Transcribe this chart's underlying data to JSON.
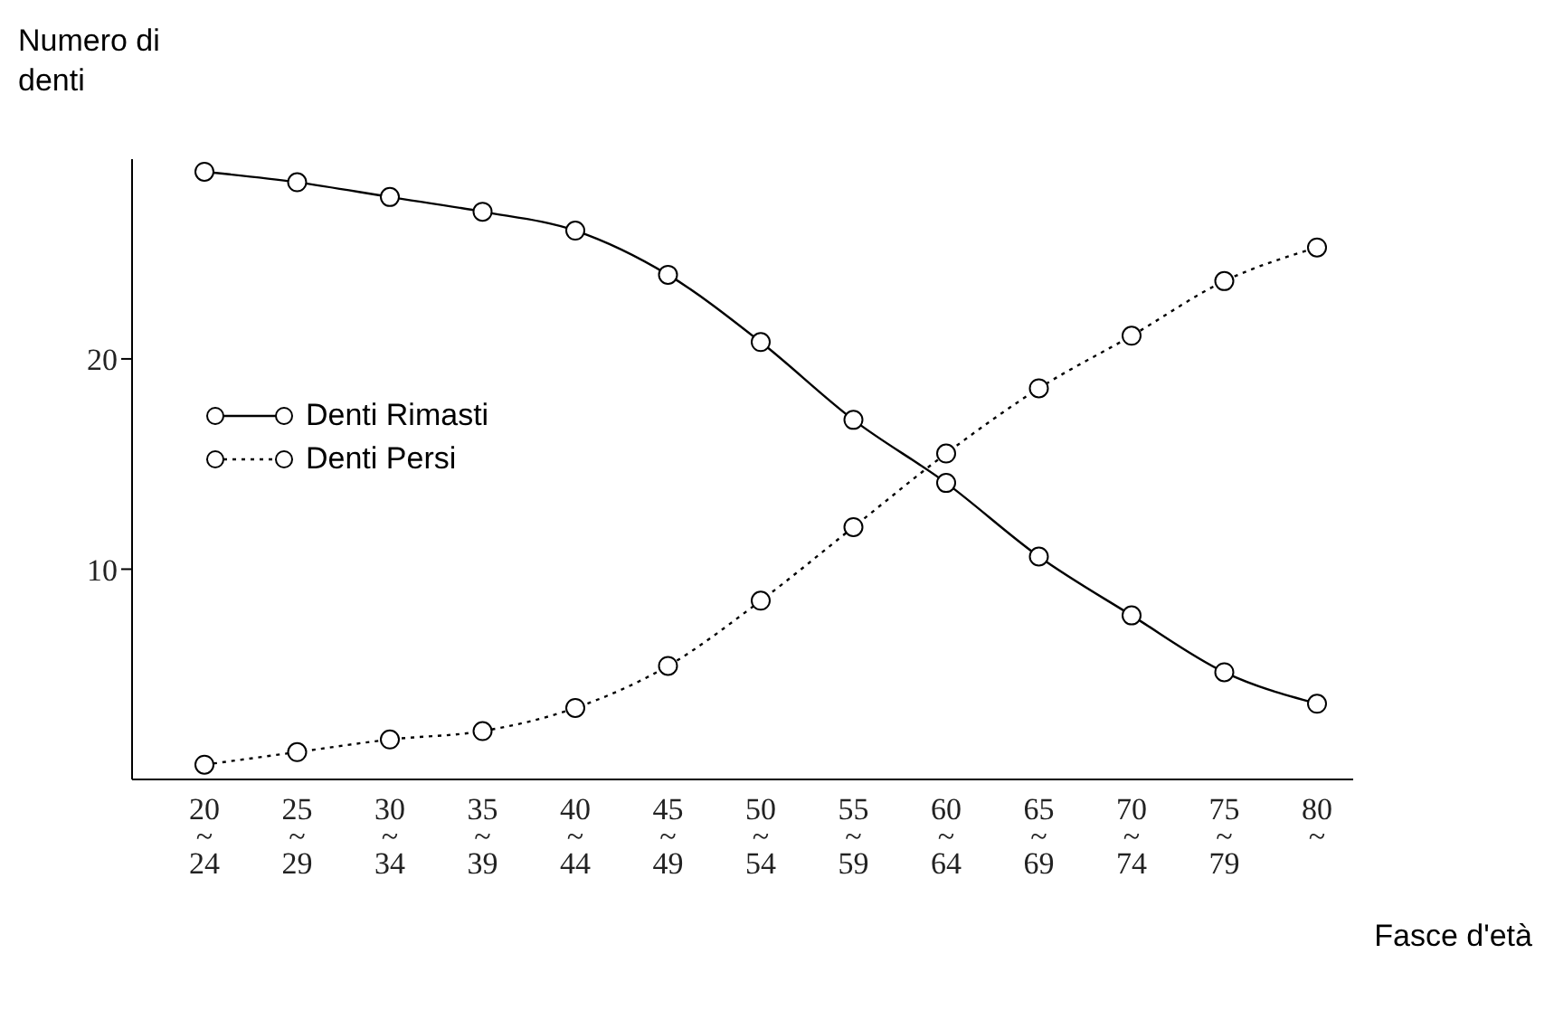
{
  "chart_data": {
    "type": "line",
    "ylabel": "Numero di denti",
    "xlabel": "Fasce d'età",
    "categories": [
      "20\n~\n24",
      "25\n~\n29",
      "30\n~\n34",
      "35\n~\n39",
      "40\n~\n44",
      "45\n~\n49",
      "50\n~\n54",
      "55\n~\n59",
      "60\n~\n64",
      "65\n~\n69",
      "70\n~\n74",
      "75\n~\n79",
      "80\n~"
    ],
    "series": [
      {
        "name": "Denti Rimasti",
        "color": "#000000",
        "line_style": "solid",
        "values": [
          28.9,
          28.4,
          27.7,
          27.0,
          26.1,
          24.0,
          20.8,
          17.1,
          14.1,
          10.6,
          7.8,
          5.1,
          3.6
        ]
      },
      {
        "name": "Denti Persi",
        "color": "#000000",
        "line_style": "dotted",
        "values": [
          0.7,
          1.3,
          1.9,
          2.3,
          3.4,
          5.4,
          8.5,
          12.0,
          15.5,
          18.6,
          21.1,
          23.7,
          25.3
        ]
      }
    ],
    "ylim": [
      0,
      29.5
    ],
    "yticks": [
      10,
      20
    ],
    "grid": false,
    "legend": "left",
    "marker": "circle"
  }
}
